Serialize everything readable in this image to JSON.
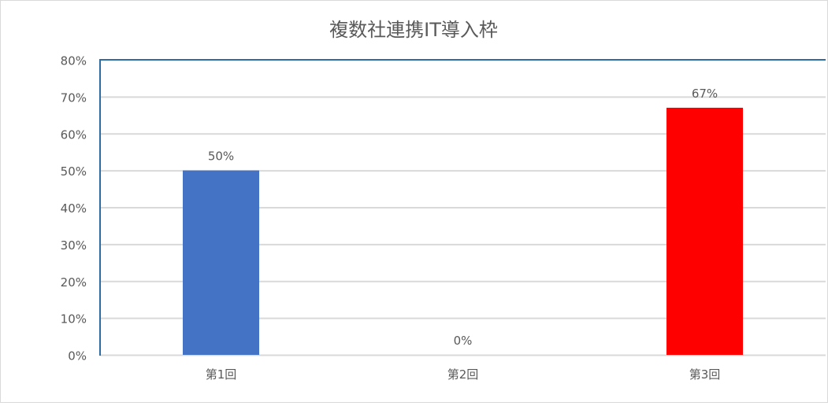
{
  "chart_data": {
    "type": "bar",
    "title": "複数社連携IT導入枠",
    "categories": [
      "第1回",
      "第2回",
      "第3回"
    ],
    "values": [
      50,
      0,
      67
    ],
    "data_labels": [
      "50%",
      "0%",
      "67%"
    ],
    "bar_colors": [
      "#4472C4",
      "#4472C4",
      "#FF0000"
    ],
    "ylim": [
      0,
      80
    ],
    "yticks": [
      0,
      10,
      20,
      30,
      40,
      50,
      60,
      70,
      80
    ],
    "ytick_labels": [
      "0%",
      "10%",
      "20%",
      "30%",
      "40%",
      "50%",
      "60%",
      "70%",
      "80%"
    ],
    "grid": true,
    "legend": "none",
    "axis_color": "#2E6DA4",
    "grid_color": "#D9D9D9"
  }
}
